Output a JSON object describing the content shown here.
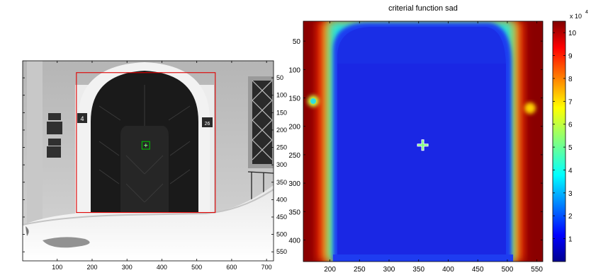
{
  "chart_data": [
    {
      "type": "image",
      "title": "",
      "xlim": [
        1,
        720
      ],
      "ylim": [
        1,
        576
      ],
      "xticks": [
        100,
        200,
        300,
        400,
        500,
        600,
        700
      ],
      "yticks": [
        50,
        100,
        150,
        200,
        250,
        300,
        350,
        400,
        450,
        500,
        550
      ],
      "search_region": {
        "x": [
          155,
          553
        ],
        "y": [
          35,
          437
        ],
        "color": "#e00000"
      },
      "template_box": {
        "x": [
          343,
          365
        ],
        "y": [
          233,
          255
        ],
        "color": "#00c000"
      },
      "match_point": {
        "x": 354,
        "y": 244
      },
      "scene_labels": [
        "4",
        "26"
      ]
    },
    {
      "type": "heatmap",
      "title": "criterial function sad",
      "xlim": [
        155,
        560
      ],
      "ylim": [
        15,
        438
      ],
      "xticks": [
        200,
        250,
        300,
        350,
        400,
        450,
        500,
        550
      ],
      "yticks": [
        50,
        100,
        150,
        200,
        250,
        300,
        350,
        400
      ],
      "minimum": {
        "x": 357,
        "y": 233
      },
      "colorbar": {
        "range": [
          0,
          10.5
        ],
        "ticks": [
          1,
          2,
          3,
          4,
          5,
          6,
          7,
          8,
          9,
          10
        ],
        "multiplier": "x 10",
        "exponent": "4"
      }
    }
  ],
  "colors": {
    "jet_low": "#00008f",
    "jet_high": "#800000",
    "region_box": "#e00000",
    "template_box": "#00c000",
    "marker_fill": "#78ff78"
  }
}
